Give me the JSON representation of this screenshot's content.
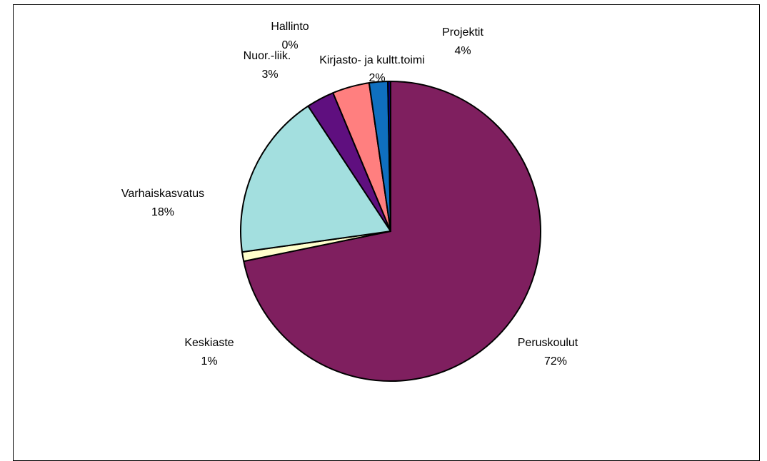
{
  "chart_data": {
    "type": "pie",
    "title": "",
    "slices": [
      {
        "name": "Peruskoulut",
        "value": 72,
        "label": "72%",
        "color": "#7f1f5f"
      },
      {
        "name": "Keskiaste",
        "value": 1,
        "label": "1%",
        "color": "#ffffcc"
      },
      {
        "name": "Varhaiskasvatus",
        "value": 18,
        "label": "18%",
        "color": "#a3dfdf"
      },
      {
        "name": "Nuor.-liik.",
        "value": 3,
        "label": "3%",
        "color": "#5f0f7f"
      },
      {
        "name": "Projektit",
        "value": 4,
        "label": "4%",
        "color": "#ff7f7f"
      },
      {
        "name": "Kirjasto- ja kultt.toimi",
        "value": 2,
        "label": "2%",
        "color": "#0f6fbf"
      },
      {
        "name": "Hallinto",
        "value": 0.3,
        "label": "0%",
        "color": "#00007f"
      }
    ],
    "start_clockwise_from": "top"
  }
}
